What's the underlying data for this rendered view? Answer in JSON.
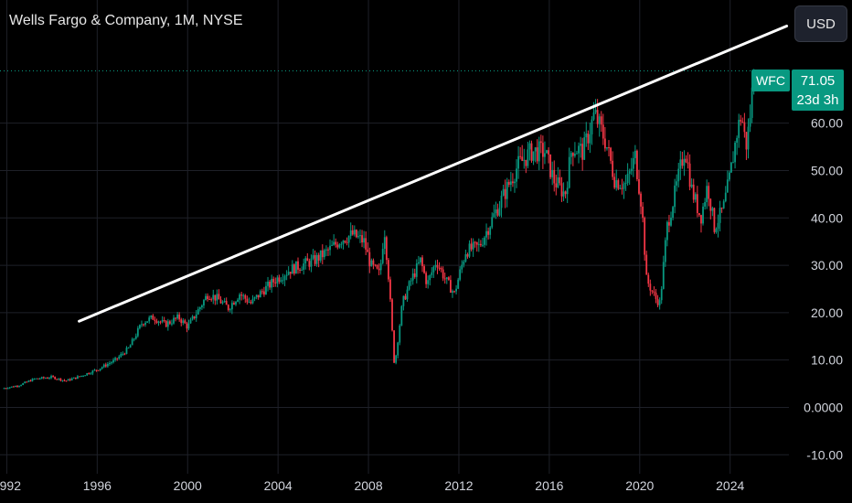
{
  "header": {
    "title": "Wells Fargo & Company, 1M, NYSE"
  },
  "toolbar": {
    "currency_label": "USD"
  },
  "price_marker": {
    "ticker": "WFC",
    "price": "71.05",
    "countdown": "23d 3h",
    "color": "#089981"
  },
  "colors": {
    "up": "#089981",
    "down": "#f23645",
    "background": "#000000",
    "trendline": "#ffffff",
    "grid": "#1e2028"
  },
  "chart_data": {
    "type": "candlestick",
    "title": "Wells Fargo & Company, 1M, NYSE",
    "x_tick_labels": [
      "1992",
      "1996",
      "2000",
      "2004",
      "2008",
      "2012",
      "2016",
      "2020",
      "2024"
    ],
    "y_tick_labels": [
      "60.00",
      "50.00",
      "40.00",
      "30.00",
      "20.00",
      "10.00",
      "0.0000",
      "-10.00"
    ],
    "x_ticks": [
      1992,
      1996,
      2000,
      2004,
      2008,
      2012,
      2016,
      2020,
      2024
    ],
    "y_ticks": [
      60,
      50,
      40,
      30,
      20,
      10,
      0,
      -10
    ],
    "xlim": [
      1991.7,
      2026.6
    ],
    "ylim": [
      -14.0,
      86.0
    ],
    "grid": true,
    "last_price": 71.05,
    "price_path": [
      [
        1991.8,
        4.0
      ],
      [
        1992.5,
        4.6
      ],
      [
        1993.2,
        6.0
      ],
      [
        1994.0,
        6.4
      ],
      [
        1994.6,
        5.6
      ],
      [
        1995.2,
        6.5
      ],
      [
        1996.0,
        8.0
      ],
      [
        1996.8,
        10.0
      ],
      [
        1997.4,
        12.5
      ],
      [
        1998.0,
        18.0
      ],
      [
        1998.5,
        19.0
      ],
      [
        1999.0,
        17.5
      ],
      [
        1999.6,
        19.0
      ],
      [
        2000.0,
        17.0
      ],
      [
        2000.4,
        20.0
      ],
      [
        2000.9,
        24.0
      ],
      [
        2001.3,
        23.0
      ],
      [
        2001.8,
        21.0
      ],
      [
        2002.3,
        24.0
      ],
      [
        2002.8,
        22.0
      ],
      [
        2003.3,
        24.5
      ],
      [
        2003.9,
        27.0
      ],
      [
        2004.5,
        29.0
      ],
      [
        2005.0,
        30.0
      ],
      [
        2005.6,
        31.0
      ],
      [
        2006.2,
        33.0
      ],
      [
        2006.8,
        35.5
      ],
      [
        2007.3,
        36.5
      ],
      [
        2007.8,
        35.0
      ],
      [
        2008.1,
        30.0
      ],
      [
        2008.5,
        28.0
      ],
      [
        2008.7,
        38.0
      ],
      [
        2008.9,
        27.0
      ],
      [
        2009.15,
        8.5
      ],
      [
        2009.5,
        22.0
      ],
      [
        2009.9,
        27.0
      ],
      [
        2010.3,
        31.0
      ],
      [
        2010.6,
        26.0
      ],
      [
        2011.0,
        31.0
      ],
      [
        2011.4,
        27.0
      ],
      [
        2011.8,
        24.0
      ],
      [
        2012.3,
        33.0
      ],
      [
        2012.9,
        34.0
      ],
      [
        2013.5,
        40.0
      ],
      [
        2014.0,
        45.0
      ],
      [
        2014.6,
        51.0
      ],
      [
        2015.2,
        54.0
      ],
      [
        2015.8,
        54.0
      ],
      [
        2016.2,
        48.0
      ],
      [
        2016.7,
        45.0
      ],
      [
        2017.0,
        55.0
      ],
      [
        2017.5,
        54.0
      ],
      [
        2018.0,
        62.0
      ],
      [
        2018.5,
        56.0
      ],
      [
        2018.9,
        48.0
      ],
      [
        2019.4,
        47.0
      ],
      [
        2019.8,
        53.0
      ],
      [
        2020.1,
        42.0
      ],
      [
        2020.3,
        27.0
      ],
      [
        2020.7,
        23.0
      ],
      [
        2020.9,
        22.0
      ],
      [
        2021.2,
        38.0
      ],
      [
        2021.6,
        46.0
      ],
      [
        2022.0,
        55.0
      ],
      [
        2022.3,
        46.0
      ],
      [
        2022.7,
        40.0
      ],
      [
        2023.0,
        47.0
      ],
      [
        2023.3,
        38.0
      ],
      [
        2023.7,
        42.0
      ],
      [
        2024.0,
        49.0
      ],
      [
        2024.3,
        58.0
      ],
      [
        2024.5,
        62.0
      ],
      [
        2024.7,
        55.0
      ],
      [
        2024.85,
        60.0
      ],
      [
        2025.05,
        71.05
      ]
    ],
    "trendline": [
      [
        1995.2,
        18.2
      ],
      [
        2026.5,
        80.5
      ]
    ]
  }
}
